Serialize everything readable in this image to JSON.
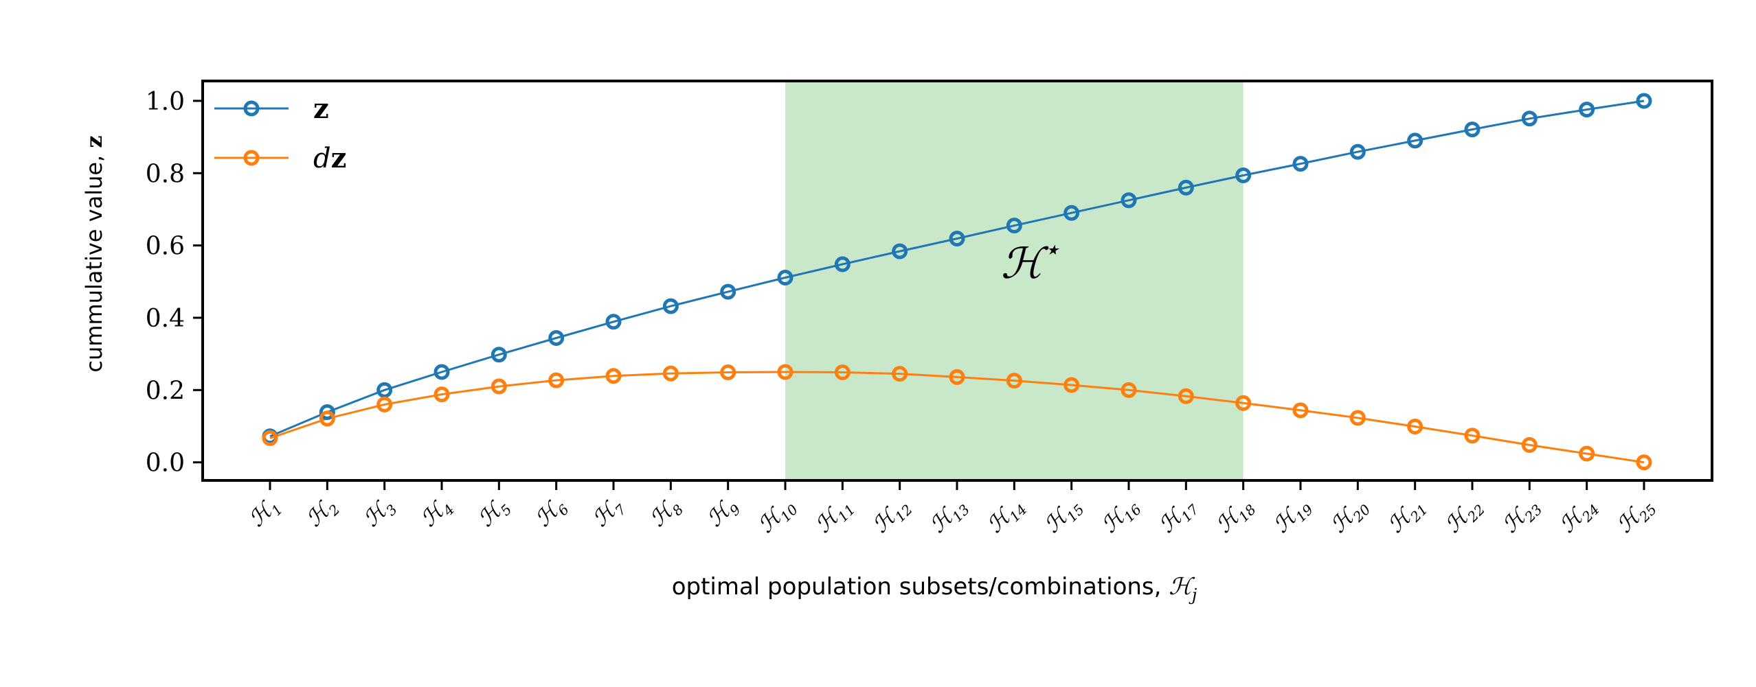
{
  "chart_data": {
    "type": "line",
    "categories": [
      "ℋ1",
      "ℋ2",
      "ℋ3",
      "ℋ4",
      "ℋ5",
      "ℋ6",
      "ℋ7",
      "ℋ8",
      "ℋ9",
      "ℋ10",
      "ℋ11",
      "ℋ12",
      "ℋ13",
      "ℋ14",
      "ℋ15",
      "ℋ16",
      "ℋ17",
      "ℋ18",
      "ℋ19",
      "ℋ20",
      "ℋ21",
      "ℋ22",
      "ℋ23",
      "ℋ24",
      "ℋ25"
    ],
    "category_base": "ℋ",
    "category_subscripts": [
      "1",
      "2",
      "3",
      "4",
      "5",
      "6",
      "7",
      "8",
      "9",
      "10",
      "11",
      "12",
      "13",
      "14",
      "15",
      "16",
      "17",
      "18",
      "19",
      "20",
      "21",
      "22",
      "23",
      "24",
      "25"
    ],
    "series": [
      {
        "name": "z",
        "color": "#1f77b4",
        "values": [
          0.072,
          0.139,
          0.2,
          0.25,
          0.298,
          0.344,
          0.389,
          0.432,
          0.472,
          0.511,
          0.548,
          0.584,
          0.619,
          0.655,
          0.69,
          0.725,
          0.76,
          0.794,
          0.826,
          0.859,
          0.89,
          0.921,
          0.951,
          0.976,
          1.0
        ]
      },
      {
        "name": "dz",
        "color": "#ff7f0e",
        "values": [
          0.067,
          0.121,
          0.16,
          0.188,
          0.21,
          0.227,
          0.239,
          0.246,
          0.249,
          0.25,
          0.249,
          0.245,
          0.236,
          0.226,
          0.214,
          0.2,
          0.183,
          0.164,
          0.144,
          0.123,
          0.099,
          0.074,
          0.048,
          0.024,
          0.0
        ]
      }
    ],
    "legend_labels": {
      "z": "z",
      "dz_d": "d",
      "dz_z": "z"
    },
    "legend_position": "top-left",
    "ylabel": "cummulative value, ",
    "ylabel_symbol": "z",
    "xlabel": "optimal population subsets/combinations, ",
    "xlabel_symbol": "ℋ",
    "xlabel_subscript": "j",
    "ylim": [
      -0.05,
      1.055
    ],
    "yticks": [
      "0.0",
      "0.2",
      "0.4",
      "0.6",
      "0.8",
      "1.0"
    ],
    "ytick_values": [
      0.0,
      0.2,
      0.4,
      0.6,
      0.8,
      1.0
    ],
    "highlight": {
      "from_category": "ℋ10",
      "to_category": "ℋ18",
      "color": "#c9e8c9",
      "label": "ℋ",
      "label_sup": "⋆"
    },
    "grid": false
  }
}
